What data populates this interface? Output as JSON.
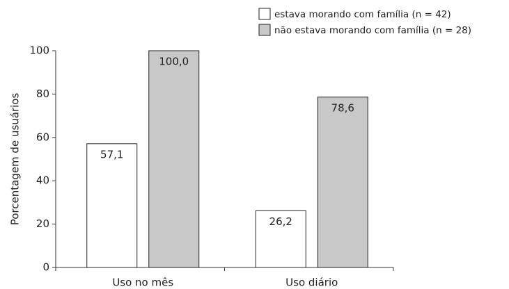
{
  "chart_data": {
    "type": "bar",
    "ylabel": "Porcentagem de usuários",
    "categories": [
      "Uso no mês",
      "Uso diário"
    ],
    "series": [
      {
        "name": "estava morando com família (n = 42)",
        "color": "#ffffff",
        "values": [
          57.1,
          26.2
        ],
        "value_labels": [
          "57,1",
          "26,2"
        ]
      },
      {
        "name": "não estava morando com família (n = 28)",
        "color": "#c8c8c8",
        "values": [
          100.0,
          78.6
        ],
        "value_labels": [
          "100,0",
          "78,6"
        ]
      }
    ],
    "ylim": [
      0,
      100
    ],
    "yticks": [
      0,
      20,
      40,
      60,
      80,
      100
    ],
    "grid": false,
    "legend": "upper right"
  }
}
